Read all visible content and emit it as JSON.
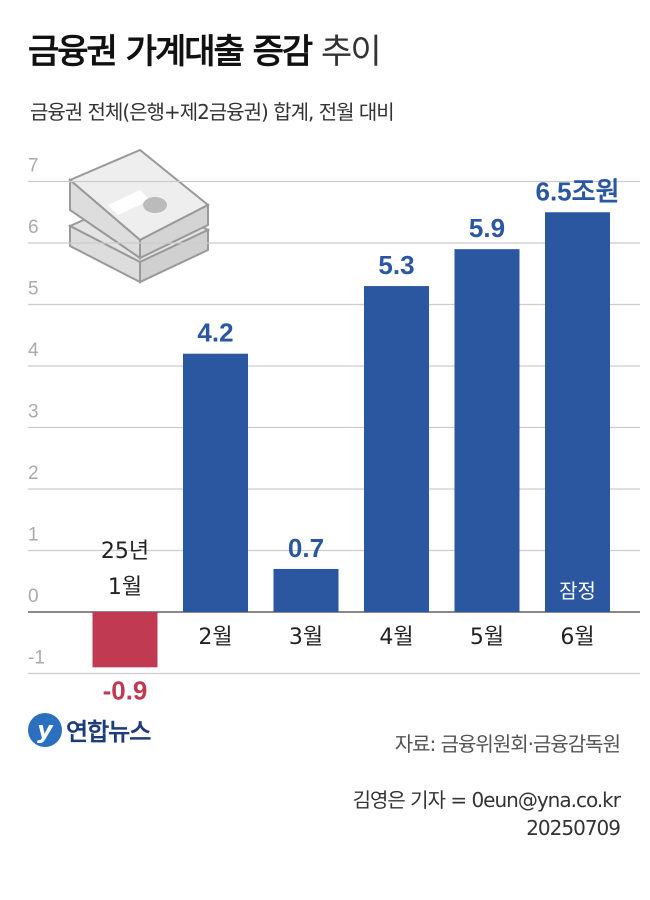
{
  "header": {
    "title_bold": "금융권 가계대출 증감",
    "title_light": "추이",
    "subtitle": "금융권 전체(은행+제2금융권) 합계, 전월 대비"
  },
  "chart_data": {
    "type": "bar",
    "categories": [
      "25년\n1월",
      "2월",
      "3월",
      "4월",
      "5월",
      "6월"
    ],
    "values": [
      -0.9,
      4.2,
      0.7,
      5.3,
      5.9,
      6.5
    ],
    "data_labels": [
      "-0.9",
      "4.2",
      "0.7",
      "5.3",
      "5.9",
      "6.5조원"
    ],
    "annotations": [
      {
        "category": "6월",
        "text": "잠정"
      }
    ],
    "unit": "조원",
    "yticks": [
      "-1",
      "0",
      "1",
      "2",
      "3",
      "4",
      "5",
      "6",
      "7"
    ],
    "ylim": [
      -1,
      7
    ],
    "grid": true,
    "colors": {
      "positive": "#2b56a0",
      "negative": "#c03a52"
    }
  },
  "footer": {
    "source": "자료: 금융위원회·금융감독원",
    "reporter": "김영은 기자 = 0eun@yna.co.kr",
    "date": "20250709",
    "logo_text": "연합뉴스",
    "logo_mark": "y"
  }
}
